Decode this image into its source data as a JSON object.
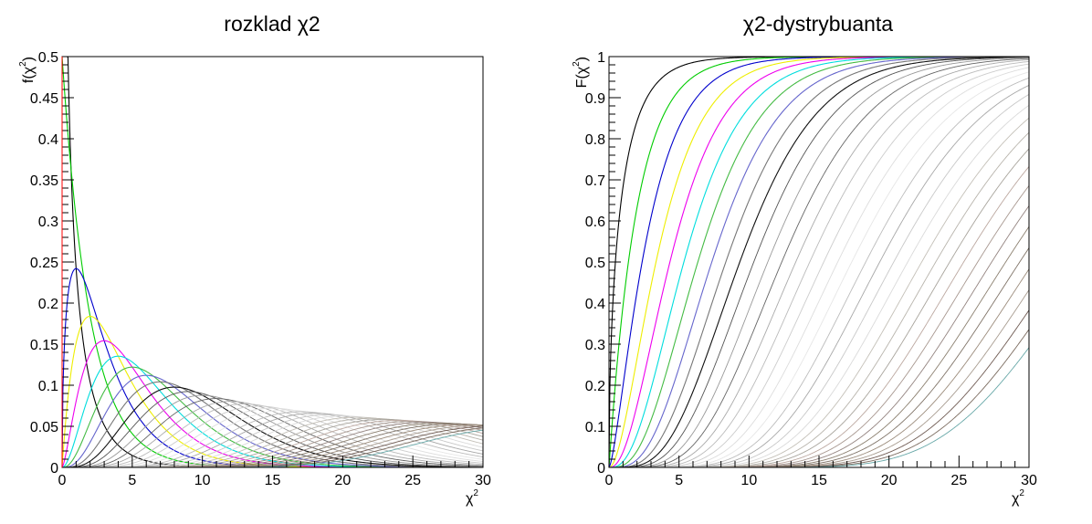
{
  "chart_data": [
    {
      "type": "line",
      "title": "rozklad χ2",
      "xlabel": "χ",
      "xlabel_sup": "2",
      "ylabel": "f(χ",
      "ylabel_sup": "2",
      "ylabel_close": ")",
      "xlim": [
        0,
        30
      ],
      "ylim": [
        0,
        0.5
      ],
      "x_ticks": [
        "0",
        "5",
        "10",
        "15",
        "20",
        "25",
        "30"
      ],
      "y_ticks": [
        "0",
        "0.05",
        "0.1",
        "0.15",
        "0.2",
        "0.25",
        "0.3",
        "0.35",
        "0.4",
        "0.45",
        "0.5"
      ],
      "grid": false,
      "function": "chi2_pdf",
      "degrees_of_freedom": [
        1,
        2,
        3,
        4,
        5,
        6,
        7,
        8,
        9,
        10,
        11,
        12,
        13,
        14,
        15,
        16,
        17,
        18,
        19,
        20,
        21,
        22,
        23,
        24,
        25,
        26,
        27,
        28,
        29,
        30,
        31,
        32,
        33,
        34,
        35
      ]
    },
    {
      "type": "line",
      "title": "χ2-dystrybuanta",
      "xlabel": "χ",
      "xlabel_sup": "2",
      "ylabel": "F(χ",
      "ylabel_sup": "2",
      "ylabel_close": ")",
      "xlim": [
        0,
        30
      ],
      "ylim": [
        0,
        1
      ],
      "x_ticks": [
        "0",
        "5",
        "10",
        "15",
        "20",
        "25",
        "30"
      ],
      "y_ticks": [
        "0",
        "0.1",
        "0.2",
        "0.3",
        "0.4",
        "0.5",
        "0.6",
        "0.7",
        "0.8",
        "0.9",
        "1"
      ],
      "grid": false,
      "function": "chi2_cdf",
      "degrees_of_freedom": [
        1,
        2,
        3,
        4,
        5,
        6,
        7,
        8,
        9,
        10,
        11,
        12,
        13,
        14,
        15,
        16,
        17,
        18,
        19,
        20,
        21,
        22,
        23,
        24,
        25,
        26,
        27,
        28,
        29,
        30,
        31,
        32,
        33,
        34,
        35
      ]
    }
  ],
  "series_colors": [
    "#000000",
    "#00cc00",
    "#0000cc",
    "#eeee00",
    "#ee00ee",
    "#00dddd",
    "#44bb44",
    "#6666cc",
    "#777777",
    "#111111",
    "#555555",
    "#999999",
    "#666666",
    "#aaaaaa",
    "#bbbbbb",
    "#cccccc",
    "#dddddd",
    "#e6e6e6",
    "#bcbcbc",
    "#a8a8a8",
    "#c8c8c8",
    "#dadada",
    "#c4c0b8",
    "#b8b4ac",
    "#a8a49c",
    "#bca8a0",
    "#a89890",
    "#948480",
    "#8c8070",
    "#807468",
    "#9c8c7c",
    "#a89c90",
    "#705c54",
    "#7c6c60",
    "#68a8a8"
  ],
  "accent_color": "#ff0000"
}
